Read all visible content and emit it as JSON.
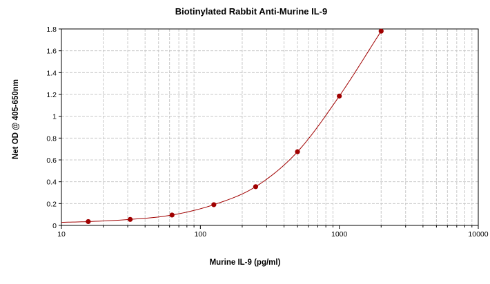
{
  "chart_data": {
    "type": "scatter",
    "title": "Biotinylated Rabbit Anti-Murine IL-9",
    "xlabel": "Murine IL-9 (pg/ml)",
    "ylabel": "Net OD @ 405-650nm",
    "x_scale": "log",
    "xlim": [
      10,
      10000
    ],
    "ylim": [
      0,
      1.8
    ],
    "x_ticks": [
      "10",
      "100",
      "1000",
      "10000"
    ],
    "y_ticks": [
      "0",
      "0.2",
      "0.4",
      "0.6",
      "0.8",
      "1",
      "1.2",
      "1.4",
      "1.6",
      "1.8"
    ],
    "grid": true,
    "fit_line": true,
    "series": [
      {
        "x": [
          15.6,
          31.25,
          62.5,
          125,
          250,
          500,
          1000,
          2000
        ],
        "y": [
          0.035,
          0.055,
          0.095,
          0.19,
          0.355,
          0.675,
          1.185,
          1.78
        ],
        "color": "#a00000"
      }
    ]
  }
}
